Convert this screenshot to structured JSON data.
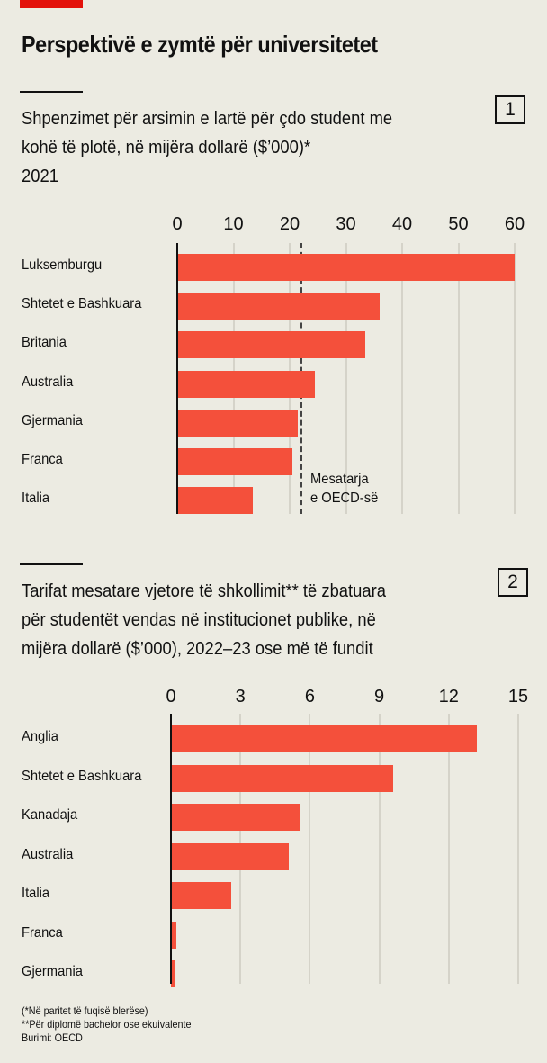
{
  "header": {
    "title": "Perspektivë e zymtë për universitetet"
  },
  "chart_data": [
    {
      "type": "bar",
      "number": "1",
      "subtitle_lines": [
        "Shpenzimet për arsimin e lartë për çdo student me",
        "kohë të plotë, në mijëra dollarë ($’000)*",
        "2021"
      ],
      "categories": [
        "Luksemburgu",
        "Shtetet e Bashkuara",
        "Britania",
        "Australia",
        "Gjermania",
        "Franca",
        "Italia"
      ],
      "values": [
        60,
        36,
        33.5,
        24.5,
        21.5,
        20.5,
        13.5
      ],
      "xlim": [
        0,
        60
      ],
      "ticks": [
        "0",
        "10",
        "20",
        "30",
        "40",
        "50",
        "60"
      ],
      "reference": {
        "value": 22,
        "label_lines": [
          "Mesatarja",
          "e OECD-së"
        ]
      }
    },
    {
      "type": "bar",
      "number": "2",
      "subtitle_lines": [
        "Tarifat mesatare vjetore të shkollimit** të zbatuara",
        "për studentët vendas në institucionet publike, në",
        "mijëra dollarë ($’000), 2022–23 ose më të fundit"
      ],
      "categories": [
        "Anglia",
        "Shtetet e Bashkuara",
        "Kanadaja",
        "Australia",
        "Italia",
        "Franca",
        "Gjermania"
      ],
      "values": [
        13.2,
        9.6,
        5.6,
        5.1,
        2.6,
        0.25,
        0.15
      ],
      "xlim": [
        0,
        15
      ],
      "ticks": [
        "0",
        "3",
        "6",
        "9",
        "12",
        "15"
      ]
    }
  ],
  "footnotes": {
    "note1": "(*Në paritet të fuqisë blerëse)",
    "note2": "**Për diplomë bachelor ose ekuivalente",
    "source": "Burimi: OECD"
  },
  "colors": {
    "bar": "#f4503b",
    "accent": "#e3120b",
    "background": "#ecebe2",
    "grid": "#d5d3c9"
  }
}
